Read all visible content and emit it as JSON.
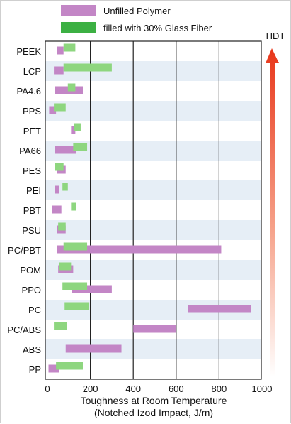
{
  "chart_data": {
    "type": "bar",
    "orientation": "horizontal",
    "range_bars": true,
    "categories": [
      "PEEK",
      "LCP",
      "PA4.6",
      "PPS",
      "PET",
      "PA66",
      "PES",
      "PEI",
      "PBT",
      "PSU",
      "PC/PBT",
      "POM",
      "PPO",
      "PC",
      "PC/ABS",
      "ABS",
      "PP"
    ],
    "series": [
      {
        "name": "Unfilled Polymer",
        "color": "#c386c6",
        "ranges": [
          [
            45,
            75
          ],
          [
            30,
            75
          ],
          [
            35,
            165
          ],
          [
            8,
            40
          ],
          [
            110,
            130
          ],
          [
            35,
            135
          ],
          [
            45,
            85
          ],
          [
            35,
            55
          ],
          [
            20,
            65
          ],
          [
            45,
            85
          ],
          [
            45,
            810
          ],
          [
            50,
            120
          ],
          [
            115,
            300
          ],
          [
            655,
            950
          ],
          [
            400,
            600
          ],
          [
            85,
            345
          ],
          [
            5,
            55
          ]
        ]
      },
      {
        "name": "filled with 30% Glass Fiber",
        "color": "#8ed67f",
        "ranges": [
          [
            75,
            130
          ],
          [
            75,
            300
          ],
          [
            95,
            130
          ],
          [
            30,
            85
          ],
          [
            125,
            155
          ],
          [
            120,
            185
          ],
          [
            35,
            75
          ],
          [
            70,
            95
          ],
          [
            110,
            135
          ],
          [
            50,
            85
          ],
          [
            75,
            185
          ],
          [
            55,
            110
          ],
          [
            70,
            185
          ],
          [
            80,
            195
          ],
          [
            30,
            90
          ],
          [
            null,
            null
          ],
          [
            40,
            165
          ]
        ]
      }
    ],
    "xlabel": "Toughness at Room Temperature",
    "xlabel_sub": "(Notched Izod Impact, J/m)",
    "xlim": [
      0,
      1000
    ],
    "xticks": [
      0,
      200,
      400,
      600,
      800,
      1000
    ],
    "grid": true,
    "legend": "top",
    "arrow_label": "HDT",
    "arrow_direction": "up"
  }
}
